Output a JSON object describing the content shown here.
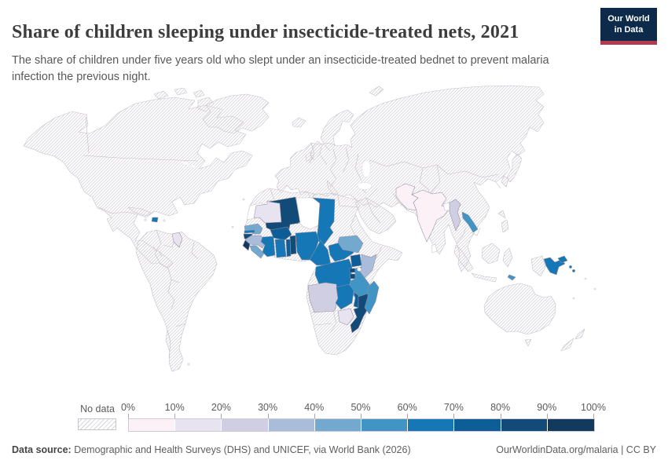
{
  "header": {
    "title": "Share of children sleeping under insecticide-treated nets, 2021",
    "subtitle": "The share of children under five years old who slept under an insecticide-treated bednet to prevent malaria infection the previous night.",
    "logo_line1": "Our World",
    "logo_line2": "in Data",
    "logo_bg": "#0e2a4a",
    "logo_accent": "#b13a4e"
  },
  "legend": {
    "no_data_label": "No data",
    "tick_labels": [
      "0%",
      "10%",
      "20%",
      "30%",
      "40%",
      "50%",
      "60%",
      "70%",
      "80%",
      "90%",
      "100%"
    ],
    "colors": [
      "#fcf1f6",
      "#e7e3f0",
      "#cfcee3",
      "#a9bcda",
      "#74a9cf",
      "#4095c4",
      "#1577b5",
      "#0d5e96",
      "#134b78",
      "#123a5c"
    ],
    "plain_color": "#ffffff"
  },
  "map": {
    "regions": [
      {
        "id": "western-sahara",
        "name": "Western Sahara",
        "bucket": null
      },
      {
        "id": "niger",
        "name": "Niger",
        "bucket": null
      },
      {
        "id": "bangladesh",
        "name": "Bangladesh",
        "bucket": null
      },
      {
        "id": "sri-lanka",
        "name": "Sri Lanka",
        "bucket": null
      },
      {
        "id": "mauritania",
        "name": "Mauritania",
        "bucket": 1
      },
      {
        "id": "mali",
        "name": "Mali",
        "bucket": 8
      },
      {
        "id": "chad",
        "name": "Chad",
        "bucket": 6
      },
      {
        "id": "senegal",
        "name": "Senegal",
        "bucket": 4
      },
      {
        "id": "gambia",
        "name": "Gambia",
        "bucket": 6
      },
      {
        "id": "guinea-bissau",
        "name": "Guinea-Bissau",
        "bucket": 8
      },
      {
        "id": "guinea",
        "name": "Guinea",
        "bucket": 3
      },
      {
        "id": "sierra-leone",
        "name": "Sierra Leone",
        "bucket": 9
      },
      {
        "id": "liberia",
        "name": "Liberia",
        "bucket": 4
      },
      {
        "id": "cote-divoire",
        "name": "Cote d'Ivoire",
        "bucket": 6
      },
      {
        "id": "burkina-faso",
        "name": "Burkina Faso",
        "bucket": 7
      },
      {
        "id": "ghana",
        "name": "Ghana",
        "bucket": 6
      },
      {
        "id": "togo",
        "name": "Togo",
        "bucket": 7
      },
      {
        "id": "benin",
        "name": "Benin",
        "bucket": 8
      },
      {
        "id": "nigeria",
        "name": "Nigeria",
        "bucket": 6
      },
      {
        "id": "cameroon",
        "name": "Cameroon",
        "bucket": 6
      },
      {
        "id": "central-african-republic",
        "name": "Central African Republic",
        "bucket": 6
      },
      {
        "id": "south-sudan",
        "name": "South Sudan",
        "bucket": 4
      },
      {
        "id": "uganda",
        "name": "Uganda",
        "bucket": 7
      },
      {
        "id": "kenya",
        "name": "Kenya",
        "bucket": 3
      },
      {
        "id": "rwanda",
        "name": "Rwanda",
        "bucket": 8
      },
      {
        "id": "burundi",
        "name": "Burundi",
        "bucket": 8
      },
      {
        "id": "drc",
        "name": "Democratic Republic of Congo",
        "bucket": 6
      },
      {
        "id": "tanzania",
        "name": "Tanzania",
        "bucket": 5
      },
      {
        "id": "angola",
        "name": "Angola",
        "bucket": 2
      },
      {
        "id": "zambia",
        "name": "Zambia",
        "bucket": 6
      },
      {
        "id": "malawi",
        "name": "Malawi",
        "bucket": 7
      },
      {
        "id": "mozambique",
        "name": "Mozambique",
        "bucket": 8
      },
      {
        "id": "zimbabwe",
        "name": "Zimbabwe",
        "bucket": 1
      },
      {
        "id": "madagascar",
        "name": "Madagascar",
        "bucket": 5
      },
      {
        "id": "haiti",
        "name": "Haiti",
        "bucket": 6
      },
      {
        "id": "guyana",
        "name": "Guyana",
        "bucket": 1
      },
      {
        "id": "pakistan",
        "name": "Pakistan",
        "bucket": 0
      },
      {
        "id": "india",
        "name": "India",
        "bucket": 0
      },
      {
        "id": "myanmar",
        "name": "Myanmar",
        "bucket": 2
      },
      {
        "id": "laos",
        "name": "Laos",
        "bucket": 5
      },
      {
        "id": "papua-new-guinea",
        "name": "Papua New Guinea",
        "bucket": 6
      },
      {
        "id": "solomon-islands",
        "name": "Solomon Islands",
        "bucket": 6
      },
      {
        "id": "timor-leste",
        "name": "Timor-Leste",
        "bucket": 5
      }
    ]
  },
  "footer": {
    "source_label": "Data source:",
    "source_text": " Demographic and Health Surveys (DHS) and UNICEF, via World Bank (2026)",
    "right_text": "OurWorldinData.org/malaria | CC BY"
  },
  "chart_data": {
    "type": "choropleth_map",
    "title": "Share of children sleeping under insecticide-treated nets, 2021",
    "unit": "%",
    "legend_position": "bottom",
    "no_data_style": "diagonal-hatch",
    "buckets": [
      "0-10%",
      "10-20%",
      "20-30%",
      "30-40%",
      "40-50%",
      "50-60%",
      "60-70%",
      "70-80%",
      "80-90%",
      "90-100%"
    ],
    "bucket_colors": [
      "#fcf1f6",
      "#e7e3f0",
      "#cfcee3",
      "#a9bcda",
      "#74a9cf",
      "#4095c4",
      "#1577b5",
      "#0d5e96",
      "#134b78",
      "#123a5c"
    ],
    "countries": [
      {
        "name": "India",
        "range": "0-10%"
      },
      {
        "name": "Pakistan",
        "range": "0-10%"
      },
      {
        "name": "Mauritania",
        "range": "10-20%"
      },
      {
        "name": "Zimbabwe",
        "range": "10-20%"
      },
      {
        "name": "Guyana",
        "range": "10-20%"
      },
      {
        "name": "Angola",
        "range": "20-30%"
      },
      {
        "name": "Myanmar",
        "range": "20-30%"
      },
      {
        "name": "Guinea",
        "range": "30-40%"
      },
      {
        "name": "Kenya",
        "range": "30-40%"
      },
      {
        "name": "Senegal",
        "range": "40-50%"
      },
      {
        "name": "South Sudan",
        "range": "40-50%"
      },
      {
        "name": "Liberia",
        "range": "40-50%"
      },
      {
        "name": "Tanzania",
        "range": "50-60%"
      },
      {
        "name": "Laos",
        "range": "50-60%"
      },
      {
        "name": "Madagascar",
        "range": "50-60%"
      },
      {
        "name": "Timor-Leste",
        "range": "50-60%"
      },
      {
        "name": "Chad",
        "range": "60-70%"
      },
      {
        "name": "Nigeria",
        "range": "60-70%"
      },
      {
        "name": "Cameroon",
        "range": "60-70%"
      },
      {
        "name": "Central African Republic",
        "range": "60-70%"
      },
      {
        "name": "Democratic Republic of Congo",
        "range": "60-70%"
      },
      {
        "name": "Cote d'Ivoire",
        "range": "60-70%"
      },
      {
        "name": "Ghana",
        "range": "60-70%"
      },
      {
        "name": "Zambia",
        "range": "60-70%"
      },
      {
        "name": "Gambia",
        "range": "60-70%"
      },
      {
        "name": "Haiti",
        "range": "60-70%"
      },
      {
        "name": "Papua New Guinea",
        "range": "60-70%"
      },
      {
        "name": "Solomon Islands",
        "range": "60-70%"
      },
      {
        "name": "Burkina Faso",
        "range": "70-80%"
      },
      {
        "name": "Togo",
        "range": "70-80%"
      },
      {
        "name": "Uganda",
        "range": "70-80%"
      },
      {
        "name": "Malawi",
        "range": "70-80%"
      },
      {
        "name": "Mali",
        "range": "80-90%"
      },
      {
        "name": "Benin",
        "range": "80-90%"
      },
      {
        "name": "Guinea-Bissau",
        "range": "80-90%"
      },
      {
        "name": "Mozambique",
        "range": "80-90%"
      },
      {
        "name": "Rwanda",
        "range": "80-90%"
      },
      {
        "name": "Burundi",
        "range": "80-90%"
      },
      {
        "name": "Sierra Leone",
        "range": "90-100%"
      },
      {
        "name": "No data",
        "range": "hatched: Americas, Europe, Russia, China, Middle East, North & Southern Africa, Australia"
      }
    ]
  }
}
